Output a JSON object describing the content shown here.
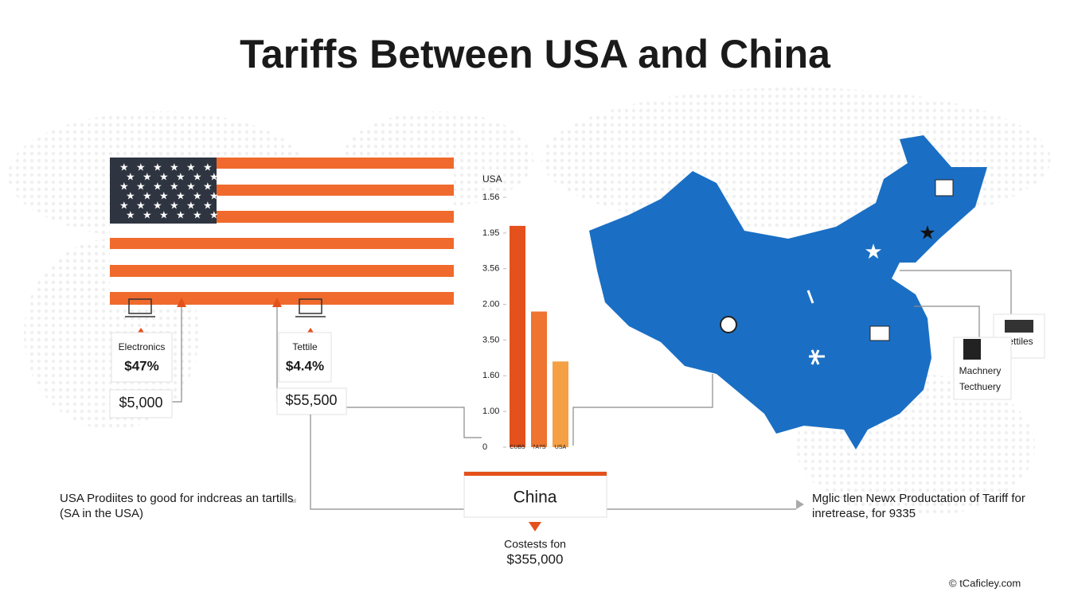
{
  "title": "Tariffs Between USA and China",
  "usa_labels": [
    {
      "category": "Electronics",
      "rate": "$47%",
      "amount": "$5,000"
    },
    {
      "category": "Tettile",
      "rate": "$4.4%",
      "amount": "$55,500"
    }
  ],
  "chart_data": {
    "type": "bar",
    "y_label": "USA",
    "categories": [
      "CUBS",
      "7A7S",
      "USA"
    ],
    "values": [
      6.2,
      3.8,
      2.4
    ],
    "colors": [
      "#e4511c",
      "#ee7430",
      "#f5a044"
    ],
    "ylim": [
      0,
      7
    ],
    "yticks": [
      0,
      {
        "value": 1,
        "label": "1.00"
      },
      {
        "value": 2,
        "label": "1.60"
      },
      {
        "value": 3,
        "label": "3.50"
      },
      {
        "value": 4,
        "label": "2.00"
      },
      {
        "value": 5,
        "label": "3.56"
      },
      {
        "value": 6,
        "label": "1.95"
      },
      {
        "value": 7,
        "label": "1.56"
      }
    ]
  },
  "map_labels": {
    "textiles": "Tettiles",
    "machinery": [
      "Machnery",
      "Tecthuery"
    ]
  },
  "center": {
    "label": "China",
    "caption": "Costests fon",
    "amount": "$355,000"
  },
  "left_note": [
    "USA Prodiites to good for indcreas an tartills",
    "(SA in the USA)"
  ],
  "right_note": [
    "Mglic tlen Newx Productation of Tariff for",
    "inretrease, for 9335"
  ],
  "footer": "© tCaficley.com"
}
